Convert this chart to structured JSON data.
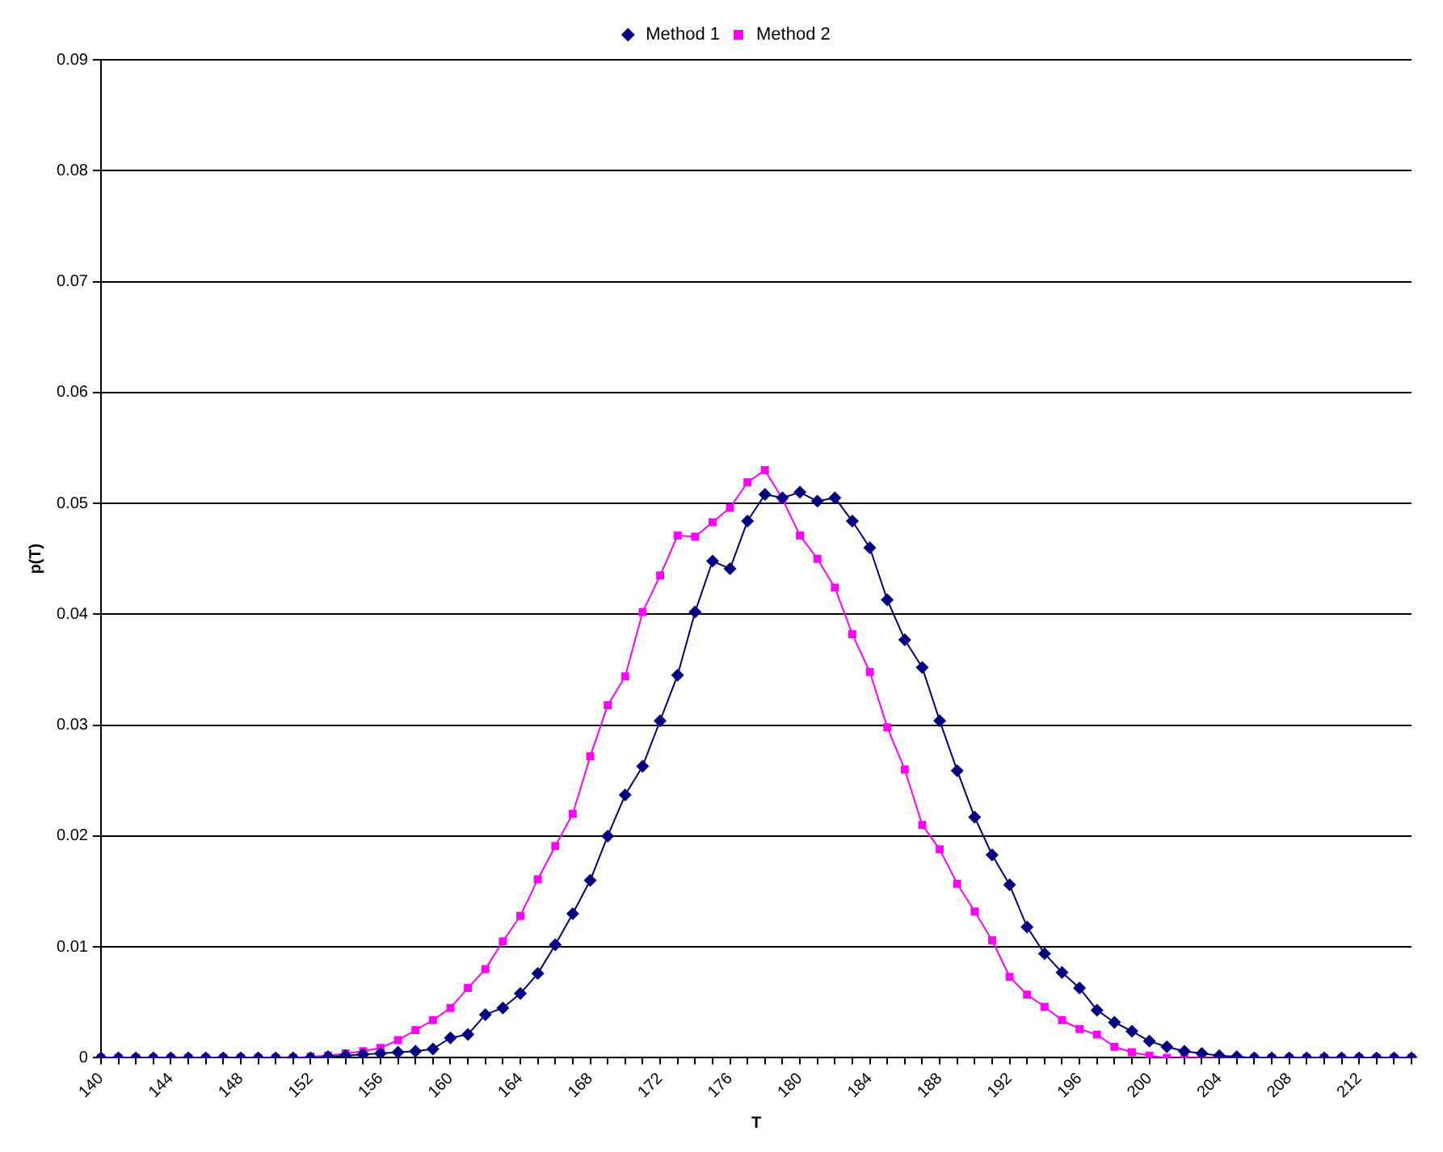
{
  "chart_data": {
    "type": "line",
    "xlabel": "T",
    "ylabel": "p(T)",
    "categories": [
      "140",
      null,
      null,
      null,
      "144",
      null,
      null,
      null,
      "148",
      null,
      null,
      null,
      "152",
      null,
      null,
      null,
      "156",
      null,
      null,
      null,
      "160",
      null,
      null,
      null,
      "164",
      null,
      null,
      null,
      "168",
      null,
      null,
      null,
      "172",
      null,
      null,
      null,
      "176",
      null,
      null,
      null,
      "180",
      null,
      null,
      null,
      "184",
      null,
      null,
      null,
      "188",
      null,
      null,
      null,
      "192",
      null,
      null,
      null,
      "196",
      null,
      null,
      null,
      "200",
      null,
      null,
      null,
      "204",
      null,
      null,
      null,
      "208",
      null,
      null,
      null,
      "212",
      null,
      null,
      null
    ],
    "series": [
      {
        "name": "Method 1",
        "color": "#000080",
        "marker": "diamond",
        "values": [
          0,
          0,
          0,
          0,
          0,
          0,
          0,
          0,
          0,
          0,
          0,
          0,
          0,
          0.0001,
          0.0002,
          0.0003,
          0.0004,
          0.0005,
          0.0006,
          0.0008,
          0.0018,
          0.0021,
          0.0039,
          0.0045,
          0.0058,
          0.0076,
          0.0102,
          0.013,
          0.016,
          0.02,
          0.0237,
          0.0263,
          0.0304,
          0.0345,
          0.0402,
          0.0448,
          0.0441,
          0.0484,
          0.0508,
          0.0505,
          0.051,
          0.0502,
          0.0505,
          0.0484,
          0.046,
          0.0413,
          0.0377,
          0.0352,
          0.0304,
          0.0259,
          0.0217,
          0.0183,
          0.0156,
          0.0118,
          0.0094,
          0.0077,
          0.0063,
          0.0043,
          0.0032,
          0.0024,
          0.0015,
          0.001,
          0.0006,
          0.0004,
          0.0002,
          0.0001,
          0,
          0,
          0,
          0,
          0,
          0,
          0,
          0,
          0,
          0
        ]
      },
      {
        "name": "Method 2",
        "color": "#ff00ff",
        "marker": "square",
        "values": [
          0,
          0,
          0,
          0,
          0,
          0,
          0,
          0,
          0,
          0,
          0,
          0,
          0.0001,
          0.0002,
          0.0004,
          0.0006,
          0.0009,
          0.0016,
          0.0025,
          0.0034,
          0.0045,
          0.0063,
          0.008,
          0.0105,
          0.0128,
          0.0161,
          0.0191,
          0.022,
          0.0272,
          0.0318,
          0.0344,
          0.0402,
          0.0435,
          0.0471,
          0.047,
          0.0483,
          0.0496,
          0.0519,
          0.053,
          0.0504,
          0.0471,
          0.045,
          0.0424,
          0.0382,
          0.0348,
          0.0298,
          0.026,
          0.021,
          0.0188,
          0.0157,
          0.0132,
          0.0106,
          0.0073,
          0.0057,
          0.0046,
          0.0034,
          0.0026,
          0.0021,
          0.001,
          0.0005,
          0.0002,
          0,
          0,
          0,
          0,
          0,
          0,
          0,
          0,
          0,
          0,
          0,
          0,
          0,
          0,
          0
        ]
      }
    ],
    "ylim": [
      0,
      0.09
    ],
    "yticks": [
      0,
      0.01,
      0.02,
      0.03,
      0.04,
      0.05,
      0.06,
      0.07,
      0.08,
      0.09
    ],
    "grid": "y",
    "legend": "top",
    "line_style": "solid"
  }
}
